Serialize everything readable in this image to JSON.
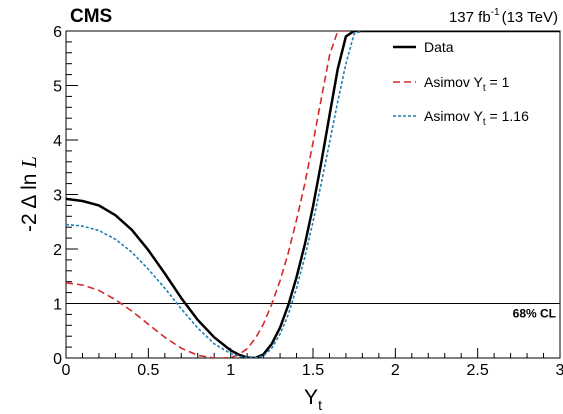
{
  "header": {
    "experiment": "CMS",
    "lumi_value": "137 fb",
    "lumi_exponent": "-1",
    "lumi_energy": "(13 TeV)"
  },
  "chart_data": {
    "type": "line",
    "xlabel_main": "Y",
    "xlabel_sub": "t",
    "ylabel_prefix": "-2 ",
    "ylabel_delta": "Δ",
    "ylabel_ln": " ln ",
    "ylabel_L": "L",
    "xlim": [
      0,
      3
    ],
    "ylim": [
      0,
      6
    ],
    "xticks": [
      "0",
      "0.5",
      "1",
      "1.5",
      "2",
      "2.5",
      "3"
    ],
    "yticks": [
      "0",
      "1",
      "2",
      "3",
      "4",
      "5",
      "6"
    ],
    "grid": false,
    "legend_position": "top-right",
    "reference_line": {
      "y": 1,
      "label": "68% CL"
    },
    "series": [
      {
        "name": "Data",
        "name_main": "Data",
        "name_sub": "",
        "name_tail": "",
        "color": "#000000",
        "style": "solid",
        "x": [
          0,
          0.1,
          0.2,
          0.3,
          0.4,
          0.5,
          0.6,
          0.7,
          0.8,
          0.9,
          1.0,
          1.05,
          1.1,
          1.15,
          1.2,
          1.25,
          1.3,
          1.35,
          1.4,
          1.45,
          1.5,
          1.55,
          1.6,
          1.65,
          1.7,
          1.75,
          1.8,
          2.0,
          2.5,
          3.0
        ],
        "y": [
          2.92,
          2.88,
          2.8,
          2.62,
          2.35,
          1.98,
          1.55,
          1.1,
          0.7,
          0.38,
          0.14,
          0.06,
          0.01,
          0.0,
          0.07,
          0.26,
          0.56,
          0.97,
          1.48,
          2.08,
          2.78,
          3.58,
          4.45,
          5.3,
          5.9,
          6.0,
          6.0,
          6.0,
          6.0,
          6.0
        ]
      },
      {
        "name": "Asimov Y_t = 1",
        "name_main": "Asimov Y",
        "name_sub": "t",
        "name_tail": " = 1",
        "color": "#d42a2a",
        "style": "dashed",
        "x": [
          0,
          0.1,
          0.2,
          0.3,
          0.4,
          0.5,
          0.6,
          0.7,
          0.8,
          0.9,
          0.95,
          1.0,
          1.05,
          1.1,
          1.15,
          1.2,
          1.25,
          1.3,
          1.35,
          1.4,
          1.45,
          1.5,
          1.55,
          1.6,
          1.65,
          1.7
        ],
        "y": [
          1.38,
          1.34,
          1.24,
          1.07,
          0.86,
          0.62,
          0.38,
          0.18,
          0.05,
          0.0,
          0.0,
          0.01,
          0.06,
          0.17,
          0.36,
          0.63,
          0.99,
          1.42,
          1.93,
          2.53,
          3.2,
          3.95,
          4.75,
          5.55,
          6.0,
          6.0
        ]
      },
      {
        "name": "Asimov Y_t = 1.16",
        "name_main": "Asimov Y",
        "name_sub": "t",
        "name_tail": " = 1.16",
        "color": "#1f7fb4",
        "style": "dotted",
        "x": [
          0,
          0.1,
          0.2,
          0.3,
          0.4,
          0.5,
          0.6,
          0.7,
          0.8,
          0.9,
          1.0,
          1.05,
          1.1,
          1.15,
          1.2,
          1.25,
          1.3,
          1.35,
          1.4,
          1.45,
          1.5,
          1.55,
          1.6,
          1.65,
          1.7,
          1.75,
          1.8
        ],
        "y": [
          2.45,
          2.42,
          2.34,
          2.18,
          1.94,
          1.63,
          1.28,
          0.9,
          0.55,
          0.26,
          0.08,
          0.03,
          0.01,
          0.0,
          0.04,
          0.18,
          0.44,
          0.8,
          1.28,
          1.85,
          2.5,
          3.2,
          3.95,
          4.7,
          5.4,
          5.95,
          6.0
        ]
      }
    ]
  }
}
